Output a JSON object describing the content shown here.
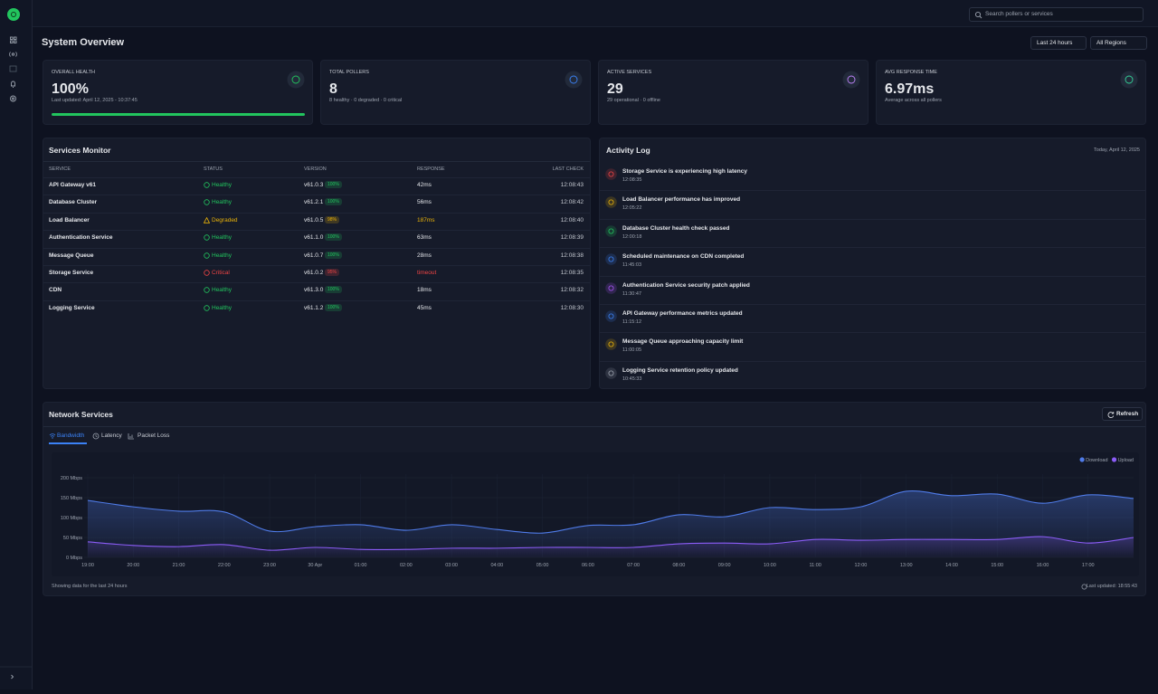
{
  "header": {
    "search_placeholder": "Search pollers or services",
    "title": "System Overview",
    "filters": [
      "Last 24 hours",
      "All Regions"
    ]
  },
  "cards": [
    {
      "label": "OVERALL HEALTH",
      "value": "100%",
      "detail": "Last updated: April 12, 2025 - 10:37:45",
      "color": "#22c55e"
    },
    {
      "label": "TOTAL POLLERS",
      "value": "8",
      "detail": "8 healthy · 0 degraded · 0 critical",
      "color": "#3b82f6"
    },
    {
      "label": "ACTIVE SERVICES",
      "value": "29",
      "detail": "29 operational · 0 offline",
      "color": "#c084fc"
    },
    {
      "label": "AVG RESPONSE TIME",
      "value": "6.97ms",
      "detail": "Average across all pollers",
      "color": "#34d399"
    }
  ],
  "services": {
    "title": "Services Monitor",
    "columns": [
      "SERVICE",
      "STATUS",
      "VERSION",
      "RESPONSE",
      "LAST CHECK"
    ],
    "rows": [
      {
        "name": "API Gateway v61",
        "status": "Healthy",
        "version": "v61.0.3",
        "uptime": "100%",
        "response": "42ms",
        "last_check": "12:08:43",
        "color": "#22c55e",
        "response_color": "#e5e7eb"
      },
      {
        "name": "Database Cluster",
        "status": "Healthy",
        "version": "v61.2.1",
        "uptime": "100%",
        "response": "56ms",
        "last_check": "12:08:42",
        "color": "#22c55e",
        "response_color": "#e5e7eb"
      },
      {
        "name": "Load Balancer",
        "status": "Degraded",
        "version": "v61.0.5",
        "uptime": "98%",
        "response": "187ms",
        "last_check": "12:08:40",
        "color": "#eab308",
        "response_color": "#eab308"
      },
      {
        "name": "Authentication Service",
        "status": "Healthy",
        "version": "v61.1.0",
        "uptime": "100%",
        "response": "63ms",
        "last_check": "12:08:39",
        "color": "#22c55e",
        "response_color": "#e5e7eb"
      },
      {
        "name": "Message Queue",
        "status": "Healthy",
        "version": "v61.0.7",
        "uptime": "100%",
        "response": "28ms",
        "last_check": "12:08:38",
        "color": "#22c55e",
        "response_color": "#e5e7eb"
      },
      {
        "name": "Storage Service",
        "status": "Critical",
        "version": "v61.0.2",
        "uptime": "95%",
        "response": "timeout",
        "last_check": "12:08:35",
        "color": "#ef4444",
        "response_color": "#ef4444"
      },
      {
        "name": "CDN",
        "status": "Healthy",
        "version": "v61.3.0",
        "uptime": "100%",
        "response": "18ms",
        "last_check": "12:08:32",
        "color": "#22c55e",
        "response_color": "#e5e7eb"
      },
      {
        "name": "Logging Service",
        "status": "Healthy",
        "version": "v61.1.2",
        "uptime": "100%",
        "response": "45ms",
        "last_check": "12:08:30",
        "color": "#22c55e",
        "response_color": "#e5e7eb"
      }
    ]
  },
  "activity": {
    "title": "Activity Log",
    "date": "Today, April 12, 2025",
    "items": [
      {
        "title": "Storage Service is experiencing high latency",
        "time": "12:08:35",
        "color": "#ef4444"
      },
      {
        "title": "Load Balancer performance has improved",
        "time": "12:05:22",
        "color": "#eab308"
      },
      {
        "title": "Database Cluster health check passed",
        "time": "12:00:18",
        "color": "#22c55e"
      },
      {
        "title": "Scheduled maintenance on CDN completed",
        "time": "11:45:03",
        "color": "#3b82f6"
      },
      {
        "title": "Authentication Service security patch applied",
        "time": "11:30:47",
        "color": "#a855f7"
      },
      {
        "title": "API Gateway performance metrics updated",
        "time": "11:15:12",
        "color": "#3b82f6"
      },
      {
        "title": "Message Queue approaching capacity limit",
        "time": "11:00:05",
        "color": "#eab308"
      },
      {
        "title": "Logging Service retention policy updated",
        "time": "10:45:33",
        "color": "#9ca3af"
      }
    ]
  },
  "network": {
    "title": "Network Services",
    "refresh": "Refresh",
    "tabs": [
      "Bandwidth",
      "Latency",
      "Packet Loss"
    ],
    "footer": "Showing data for the last 24 hours",
    "updated": "Last updated: 18:55:43",
    "chart": {
      "type": "area",
      "x": [
        "19:00",
        "20:00",
        "21:00",
        "22:00",
        "23:00",
        "30 Apr",
        "01:00",
        "02:00",
        "03:00",
        "04:00",
        "05:00",
        "06:00",
        "07:00",
        "08:00",
        "09:00",
        "10:00",
        "11:00",
        "12:00",
        "13:00",
        "14:00",
        "15:00",
        "16:00",
        "17:00",
        null
      ],
      "series": [
        {
          "name": "Download",
          "color": "#4f7be8",
          "values": [
            143,
            127,
            116,
            114,
            66,
            77,
            82,
            68,
            82,
            70,
            61,
            80,
            82,
            107,
            102,
            125,
            120,
            127,
            166,
            155,
            159,
            136,
            157,
            148
          ]
        },
        {
          "name": "Upload",
          "color": "#8b5cf6",
          "values": [
            39,
            30,
            27,
            32,
            18,
            25,
            20,
            20,
            23,
            23,
            25,
            25,
            25,
            34,
            36,
            34,
            45,
            43,
            45,
            45,
            45,
            52,
            36,
            50
          ]
        }
      ],
      "ylim": [
        0,
        200
      ],
      "yticks": [
        {
          "value": 0,
          "label": "0 Mbps"
        },
        {
          "value": 50,
          "label": "50 Mbps"
        },
        {
          "value": 100,
          "label": "100 Mbps"
        },
        {
          "value": 150,
          "label": "150 Mbps"
        },
        {
          "value": 200,
          "label": "200 Mbps"
        }
      ],
      "grid": true,
      "legend": "top-right"
    }
  }
}
